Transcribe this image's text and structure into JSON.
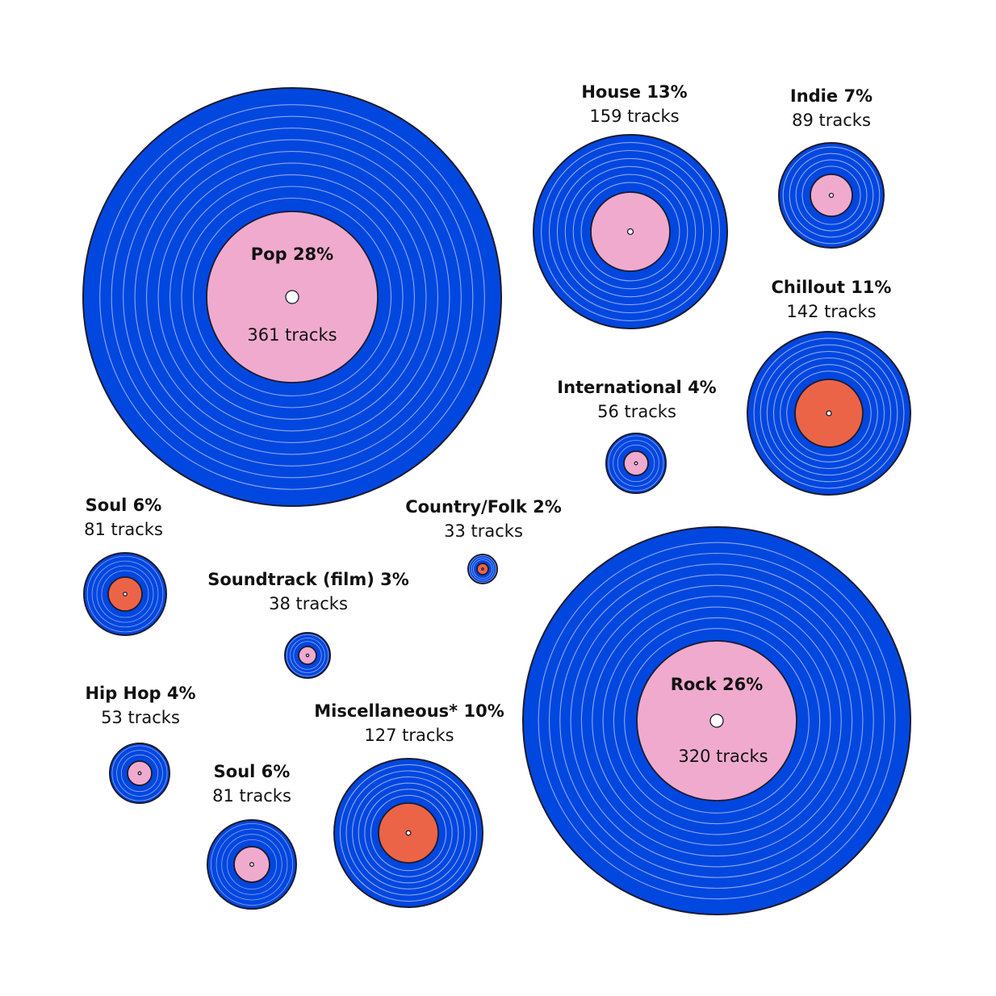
{
  "chart_data": {
    "type": "bubble",
    "title": "",
    "colors": {
      "vinyl": "#0047e0",
      "groove": "#8fa6f2",
      "outline": "#1b1b2e",
      "label_pink": "#f0aace",
      "label_orange": "#ec6447",
      "hole": "#ffffff"
    },
    "series": [
      {
        "name": "Pop",
        "percent_text": "28%",
        "tracks_text": "361 tracks",
        "tracks": 361,
        "share": 28,
        "label_color": "pink"
      },
      {
        "name": "House",
        "percent_text": "13%",
        "tracks_text": "159 tracks",
        "tracks": 159,
        "share": 13,
        "label_color": "pink"
      },
      {
        "name": "Indie",
        "percent_text": "7%",
        "tracks_text": "89 tracks",
        "tracks": 89,
        "share": 7,
        "label_color": "pink"
      },
      {
        "name": "Chillout",
        "percent_text": "11%",
        "tracks_text": "142 tracks",
        "tracks": 142,
        "share": 11,
        "label_color": "orange"
      },
      {
        "name": "International",
        "percent_text": "4%",
        "tracks_text": "56 tracks",
        "tracks": 56,
        "share": 4,
        "label_color": "pink"
      },
      {
        "name": "Country/Folk",
        "percent_text": "2%",
        "tracks_text": "33 tracks",
        "tracks": 33,
        "share": 2,
        "label_color": "orange"
      },
      {
        "name": "Soul",
        "percent_text": "6%",
        "tracks_text": "81 tracks",
        "tracks": 81,
        "share": 6,
        "label_color": "orange"
      },
      {
        "name": "Soundtrack (film)",
        "percent_text": "3%",
        "tracks_text": "38 tracks",
        "tracks": 38,
        "share": 3,
        "label_color": "pink"
      },
      {
        "name": "Hip Hop",
        "percent_text": "4%",
        "tracks_text": "53 tracks",
        "tracks": 53,
        "share": 4,
        "label_color": "pink"
      },
      {
        "name": "Soul",
        "percent_text": "6%",
        "tracks_text": "81 tracks",
        "tracks": 81,
        "share": 6,
        "label_color": "pink"
      },
      {
        "name": "Miscellaneous*",
        "percent_text": "10%",
        "tracks_text": "127 tracks",
        "tracks": 127,
        "share": 10,
        "label_color": "orange"
      },
      {
        "name": "Rock",
        "percent_text": "26%",
        "tracks_text": "320 tracks",
        "tracks": 320,
        "share": 26,
        "label_color": "pink"
      }
    ]
  }
}
